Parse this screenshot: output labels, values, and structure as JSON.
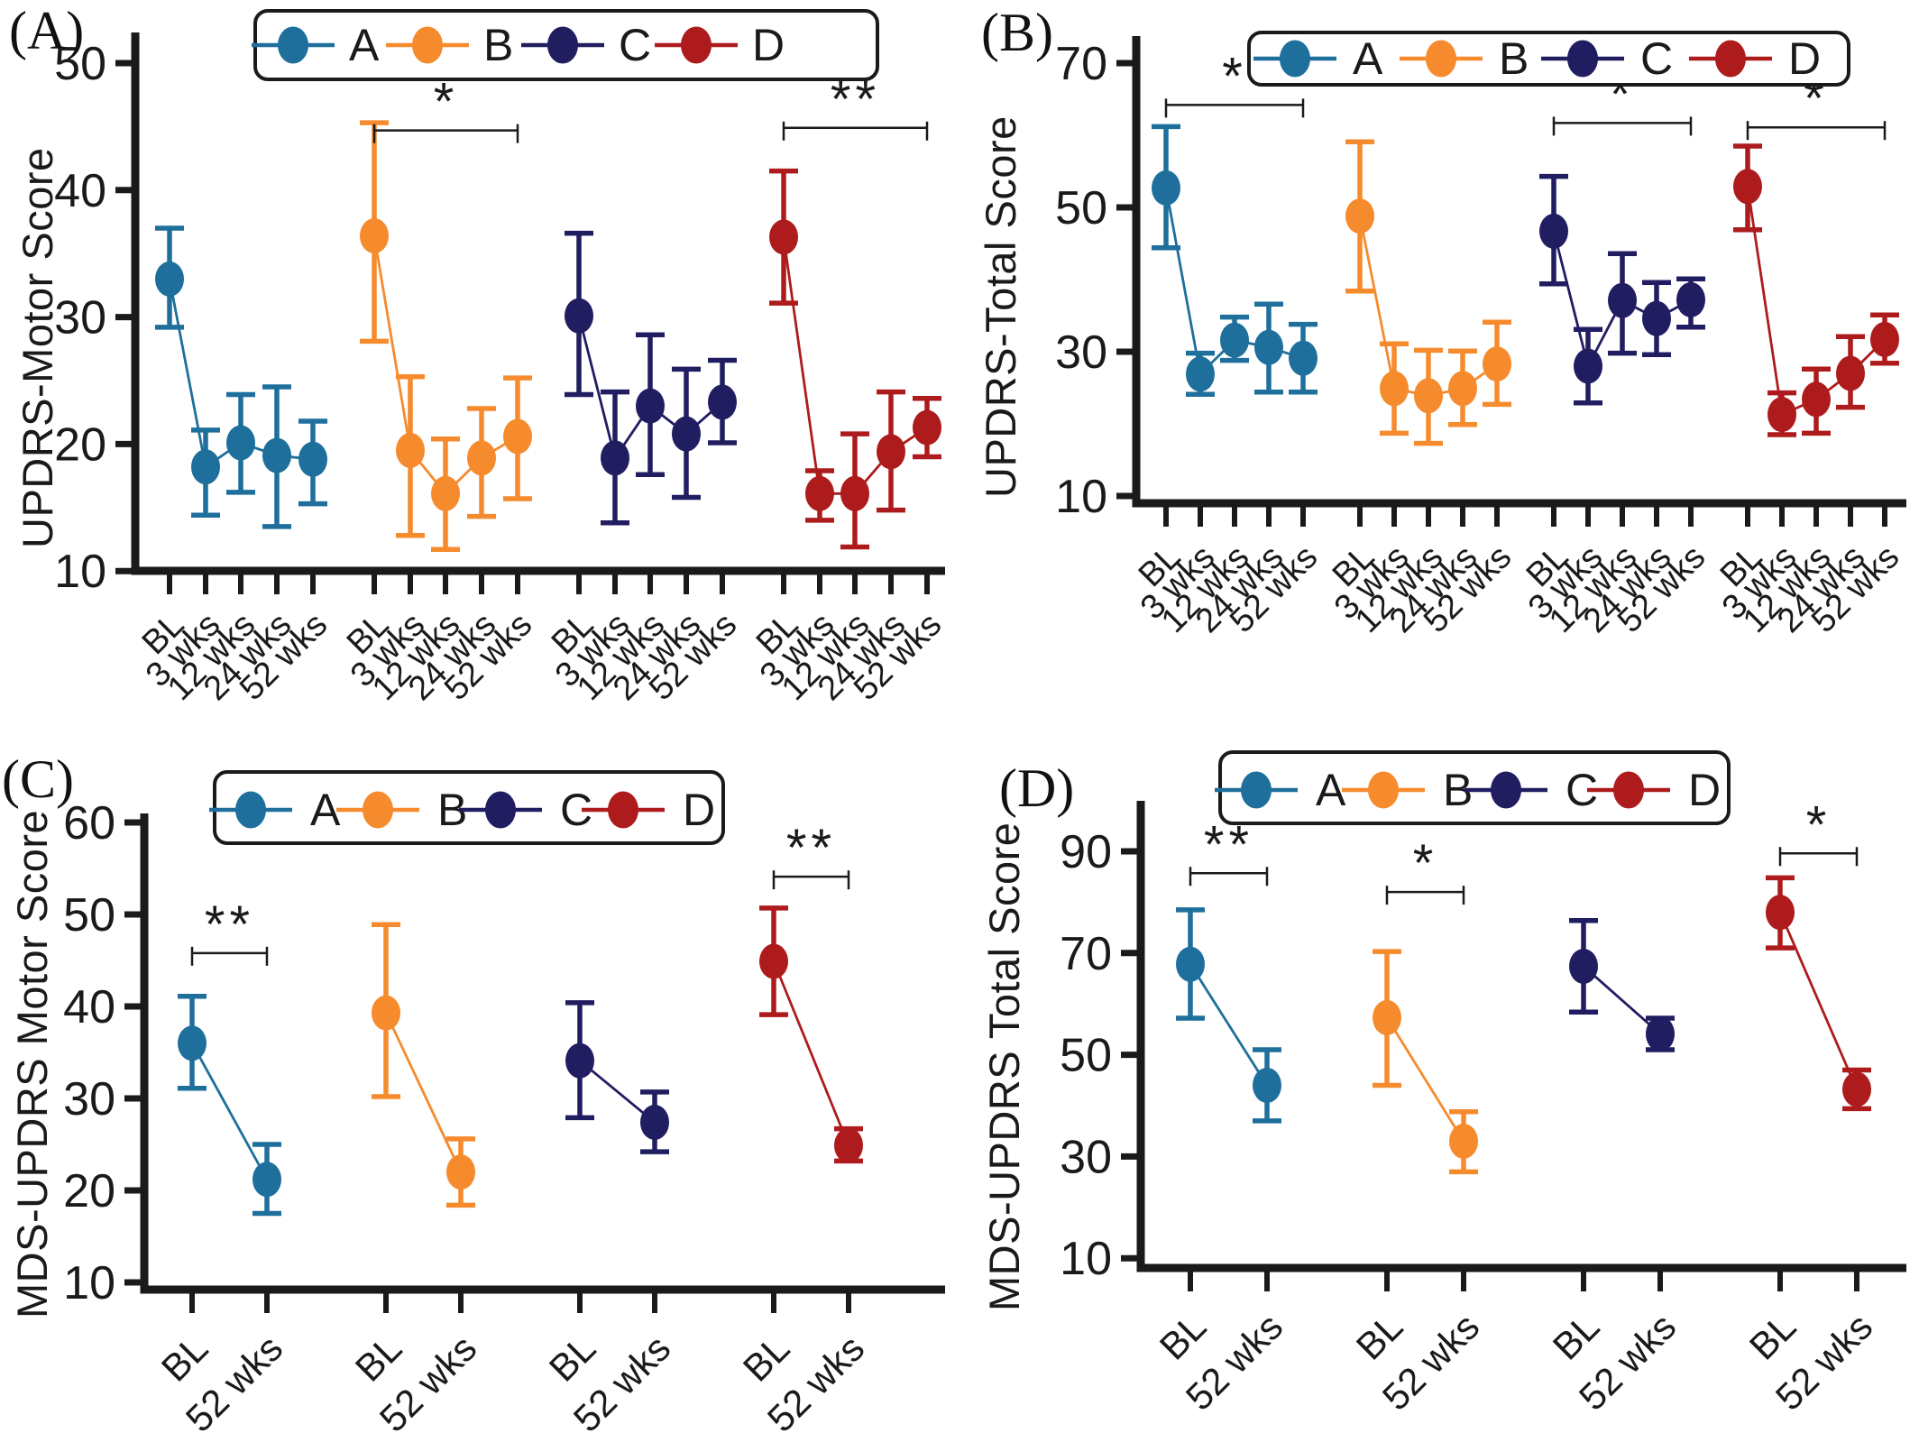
{
  "figure": {
    "background": "#ffffff",
    "axis_color": "#1a1a1a"
  },
  "chart_data": [
    {
      "id": "A",
      "panel_label": "(A)",
      "type": "line",
      "title": "",
      "xlabel": "",
      "ylabel": "UPDRS-Motor Score",
      "ylim": [
        10,
        50
      ],
      "yticks": [
        50,
        40,
        30,
        20,
        10
      ],
      "grid": false,
      "legend_position": "top",
      "categories": [
        "BL",
        "3 wks",
        "12 wks",
        "24 wks",
        "52 wks"
      ],
      "series": [
        {
          "name": "A",
          "color": "#1e6f9c",
          "means": [
            33.0,
            18.2,
            20.1,
            19.1,
            18.8
          ],
          "err_lo": [
            29.2,
            14.4,
            16.2,
            13.5,
            15.3
          ],
          "err_hi": [
            37.0,
            21.1,
            23.9,
            24.5,
            21.8
          ]
        },
        {
          "name": "B",
          "color": "#f68b2e",
          "means": [
            36.4,
            19.5,
            16.1,
            18.9,
            20.6
          ],
          "err_lo": [
            28.1,
            12.8,
            11.7,
            14.3,
            15.7
          ],
          "err_hi": [
            45.3,
            25.3,
            20.4,
            22.8,
            25.2
          ]
        },
        {
          "name": "C",
          "color": "#211d61",
          "means": [
            30.1,
            18.9,
            23.0,
            20.8,
            23.3
          ],
          "err_lo": [
            23.9,
            13.8,
            17.6,
            15.8,
            20.1
          ],
          "err_hi": [
            36.6,
            24.1,
            28.6,
            25.9,
            26.6
          ]
        },
        {
          "name": "D",
          "color": "#ae1b1c",
          "means": [
            36.3,
            16.1,
            16.1,
            19.4,
            21.3
          ],
          "err_lo": [
            31.1,
            14.0,
            11.9,
            14.8,
            19.0
          ],
          "err_hi": [
            41.5,
            17.9,
            20.8,
            24.1,
            23.6
          ]
        }
      ],
      "significance": [
        {
          "series": "B",
          "label": "*",
          "y": 44.7,
          "from": "BL",
          "to": "52 wks"
        },
        {
          "series": "D",
          "label": "**",
          "y": 44.9,
          "from": "BL",
          "to": "52 wks"
        }
      ]
    },
    {
      "id": "B",
      "panel_label": "(B)",
      "type": "line",
      "title": "",
      "xlabel": "",
      "ylabel": "UPDRS-Total Score",
      "ylim": [
        10,
        70
      ],
      "yticks": [
        70,
        50,
        30,
        10
      ],
      "grid": false,
      "legend_position": "top",
      "categories": [
        "BL",
        "3 wks",
        "12 wks",
        "24 wks",
        "52 wks"
      ],
      "series": [
        {
          "name": "A",
          "color": "#1e6f9c",
          "means": [
            52.7,
            26.9,
            31.6,
            30.6,
            29.1
          ],
          "err_lo": [
            44.4,
            24.1,
            28.8,
            24.4,
            24.4
          ],
          "err_hi": [
            61.2,
            29.8,
            34.8,
            36.6,
            33.8
          ]
        },
        {
          "name": "B",
          "color": "#f68b2e",
          "means": [
            48.8,
            24.9,
            23.9,
            24.9,
            28.3
          ],
          "err_lo": [
            38.4,
            18.7,
            17.3,
            19.9,
            22.7
          ],
          "err_hi": [
            59.1,
            31.1,
            30.2,
            30.1,
            34.1
          ]
        },
        {
          "name": "C",
          "color": "#211d61",
          "means": [
            46.7,
            28.0,
            37.1,
            34.6,
            37.2
          ],
          "err_lo": [
            39.4,
            22.9,
            29.8,
            29.6,
            33.4
          ],
          "err_hi": [
            54.3,
            33.1,
            43.6,
            39.6,
            40.1
          ]
        },
        {
          "name": "D",
          "color": "#ae1b1c",
          "means": [
            52.9,
            21.3,
            23.4,
            27.0,
            31.7
          ],
          "err_lo": [
            46.9,
            18.5,
            18.7,
            22.3,
            28.4
          ],
          "err_hi": [
            58.5,
            24.3,
            27.6,
            32.1,
            35.1
          ]
        }
      ],
      "significance": [
        {
          "series": "A",
          "label": "*",
          "y": 64.2,
          "from": "BL",
          "to": "52 wks"
        },
        {
          "series": "C",
          "label": "*",
          "y": 61.7,
          "from": "BL",
          "to": "52 wks"
        },
        {
          "series": "D",
          "label": "*",
          "y": 61.1,
          "from": "BL",
          "to": "52 wks"
        }
      ]
    },
    {
      "id": "C",
      "panel_label": "(C)",
      "type": "line",
      "title": "",
      "xlabel": "",
      "ylabel": "MDS-UPDRS Motor Score",
      "ylim": [
        10,
        60
      ],
      "yticks": [
        60,
        50,
        40,
        30,
        20,
        10
      ],
      "grid": false,
      "legend_position": "top",
      "categories": [
        "BL",
        "52 wks"
      ],
      "series": [
        {
          "name": "A",
          "color": "#1e6f9c",
          "means": [
            36.0,
            21.2
          ],
          "err_lo": [
            31.1,
            17.5
          ],
          "err_hi": [
            41.1,
            25.0
          ]
        },
        {
          "name": "B",
          "color": "#f68b2e",
          "means": [
            39.3,
            22.0
          ],
          "err_lo": [
            30.2,
            18.4
          ],
          "err_hi": [
            48.9,
            25.6
          ]
        },
        {
          "name": "C",
          "color": "#211d61",
          "means": [
            34.1,
            27.4
          ],
          "err_lo": [
            27.9,
            24.2
          ],
          "err_hi": [
            40.4,
            30.7
          ]
        },
        {
          "name": "D",
          "color": "#ae1b1c",
          "means": [
            44.9,
            24.9
          ],
          "err_lo": [
            39.1,
            23.2
          ],
          "err_hi": [
            50.7,
            26.7
          ]
        }
      ],
      "significance": [
        {
          "series": "A",
          "label": "**",
          "y": 45.8,
          "from": "BL",
          "to": "52 wks"
        },
        {
          "series": "D",
          "label": "**",
          "y": 54.1,
          "from": "BL",
          "to": "52 wks"
        }
      ]
    },
    {
      "id": "D",
      "panel_label": "(D)",
      "type": "line",
      "title": "",
      "xlabel": "",
      "ylabel": "MDS-UPDRS Total Score",
      "ylim": [
        10,
        90
      ],
      "yticks": [
        90,
        70,
        50,
        30,
        10
      ],
      "grid": false,
      "legend_position": "top",
      "categories": [
        "BL",
        "52 wks"
      ],
      "series": [
        {
          "name": "A",
          "color": "#1e6f9c",
          "means": [
            67.8,
            44.0
          ],
          "err_lo": [
            57.2,
            37.0
          ],
          "err_hi": [
            78.5,
            51.0
          ]
        },
        {
          "name": "B",
          "color": "#f68b2e",
          "means": [
            57.3,
            33.0
          ],
          "err_lo": [
            44.0,
            27.0
          ],
          "err_hi": [
            70.3,
            38.8
          ]
        },
        {
          "name": "C",
          "color": "#211d61",
          "means": [
            67.4,
            54.1
          ],
          "err_lo": [
            58.4,
            51.0
          ],
          "err_hi": [
            76.4,
            57.2
          ]
        },
        {
          "name": "D",
          "color": "#ae1b1c",
          "means": [
            78.0,
            43.2
          ],
          "err_lo": [
            71.0,
            39.4
          ],
          "err_hi": [
            84.8,
            47.0
          ]
        }
      ],
      "significance": [
        {
          "series": "A",
          "label": "**",
          "y": 85.7,
          "from": "BL",
          "to": "52 wks"
        },
        {
          "series": "B",
          "label": "*",
          "y": 82.0,
          "from": "BL",
          "to": "52 wks"
        },
        {
          "series": "D",
          "label": "*",
          "y": 89.6,
          "from": "BL",
          "to": "52 wks"
        }
      ]
    }
  ]
}
